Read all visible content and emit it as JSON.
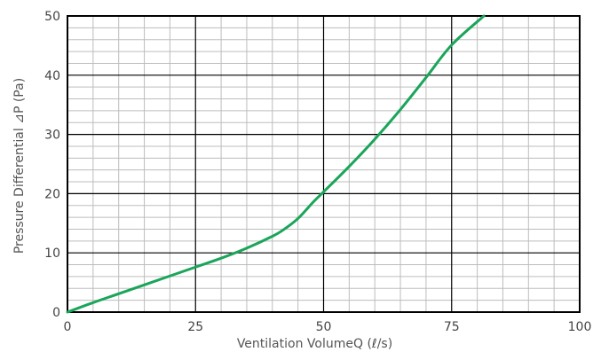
{
  "chart_data": {
    "type": "line",
    "xlabel": "Ventilation VolumeQ (ℓ/s)",
    "ylabel": "Pressure Differential ⊿P (Pa)",
    "xlim": [
      0,
      100
    ],
    "ylim": [
      0,
      50
    ],
    "x_ticks": [
      "0",
      "25",
      "50",
      "75",
      "100"
    ],
    "y_ticks": [
      "0",
      "10",
      "20",
      "30",
      "40",
      "50"
    ],
    "grid": true,
    "grid_minor": true,
    "series": [
      {
        "color": "#1aa55a",
        "x": [
          0,
          5,
          10,
          15,
          20,
          25,
          30,
          35,
          40,
          42,
          45,
          48,
          50,
          55,
          60,
          65,
          70,
          75,
          81.3
        ],
        "y": [
          0,
          1.6,
          3.1,
          4.6,
          6.1,
          7.6,
          9.1,
          10.8,
          12.8,
          13.8,
          15.8,
          18.6,
          20.3,
          24.6,
          29.2,
          34.2,
          39.6,
          45.1,
          50
        ]
      }
    ]
  }
}
